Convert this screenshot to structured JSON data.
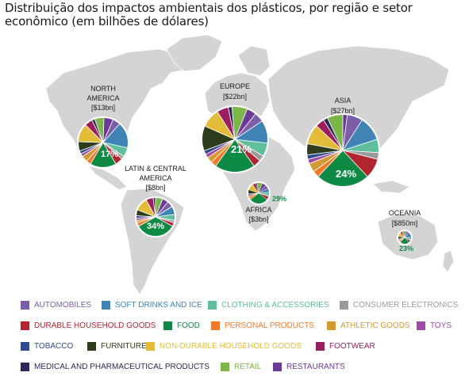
{
  "title": "Distribuição dos impactos ambientais dos plásticos, por região e setor econômico (em bilhões de dólares)",
  "chart_data": {
    "type": "pie",
    "categories": [
      {
        "name": "AUTOMOBILES",
        "color": "#7b5ea7"
      },
      {
        "name": "SOFT DRINKS AND ICE",
        "color": "#3f84b4"
      },
      {
        "name": "CLOTHING & ACCESSORIES",
        "color": "#5fbf9a"
      },
      {
        "name": "CONSUMER ELECTRONICS",
        "color": "#9a9a9a"
      },
      {
        "name": "DURABLE HOUSEHOLD GOODS",
        "color": "#b0252f"
      },
      {
        "name": "FOOD",
        "color": "#0f8a45"
      },
      {
        "name": "PERSONAL PRODUCTS",
        "color": "#ef7b2a"
      },
      {
        "name": "ATHLETIC GOODS",
        "color": "#d29a30"
      },
      {
        "name": "TOYS",
        "color": "#a04aa8"
      },
      {
        "name": "TOBACCO",
        "color": "#2f4a8e"
      },
      {
        "name": "FURNITURE",
        "color": "#2d3d1c"
      },
      {
        "name": "NON-DURABLE HOUSEHOLD GOODS",
        "color": "#e3bd3a"
      },
      {
        "name": "FOOTWEAR",
        "color": "#9b1f5e"
      },
      {
        "name": "MEDICAL AND PHARMACEUTICAL PRODUCTS",
        "color": "#2b2a58"
      },
      {
        "name": "RETAIL",
        "color": "#7ab648"
      },
      {
        "name": "RESTAURANTS",
        "color": "#6d3a98"
      }
    ],
    "regions": [
      {
        "name": "NORTH AMERICA",
        "value_label": "[$13bn]",
        "value_bn": 13,
        "food_pct_label": "17%",
        "slices": [
          5,
          17,
          6,
          2,
          5,
          17,
          3,
          4,
          2,
          2,
          6,
          12,
          5,
          2,
          6,
          6
        ]
      },
      {
        "name": "EUROPE",
        "value_label": "[$22bn]",
        "value_bn": 22,
        "food_pct_label": "21%",
        "slices": [
          5,
          12,
          7,
          3,
          4,
          21,
          3,
          3,
          2,
          2,
          13,
          10,
          6,
          2,
          8,
          5
        ]
      },
      {
        "name": "LATIN & CENTRAL AMERICA",
        "value_label": "[$8bn]",
        "value_bn": 8,
        "food_pct_label": "34%",
        "slices": [
          5,
          7,
          5,
          2,
          3,
          34,
          3,
          2,
          2,
          2,
          5,
          11,
          6,
          2,
          6,
          5
        ]
      },
      {
        "name": "AFRICA",
        "value_label": "[$3bn]",
        "value_bn": 3,
        "food_pct_label": "29%",
        "slices": [
          6,
          6,
          5,
          2,
          5,
          29,
          3,
          3,
          2,
          2,
          6,
          10,
          5,
          2,
          8,
          6
        ]
      },
      {
        "name": "ASIA",
        "value_label": "[$27bn]",
        "value_bn": 27,
        "food_pct_label": "24%",
        "slices": [
          7,
          11,
          6,
          3,
          9,
          24,
          3,
          4,
          2,
          2,
          5,
          9,
          4,
          2,
          7,
          2
        ]
      },
      {
        "name": "OCEANIA",
        "value_label": "[$850m]",
        "value_bn": 0.85,
        "food_pct_label": "23%",
        "slices": [
          5,
          12,
          6,
          3,
          5,
          23,
          3,
          3,
          2,
          2,
          6,
          11,
          5,
          2,
          8,
          4
        ]
      }
    ]
  }
}
